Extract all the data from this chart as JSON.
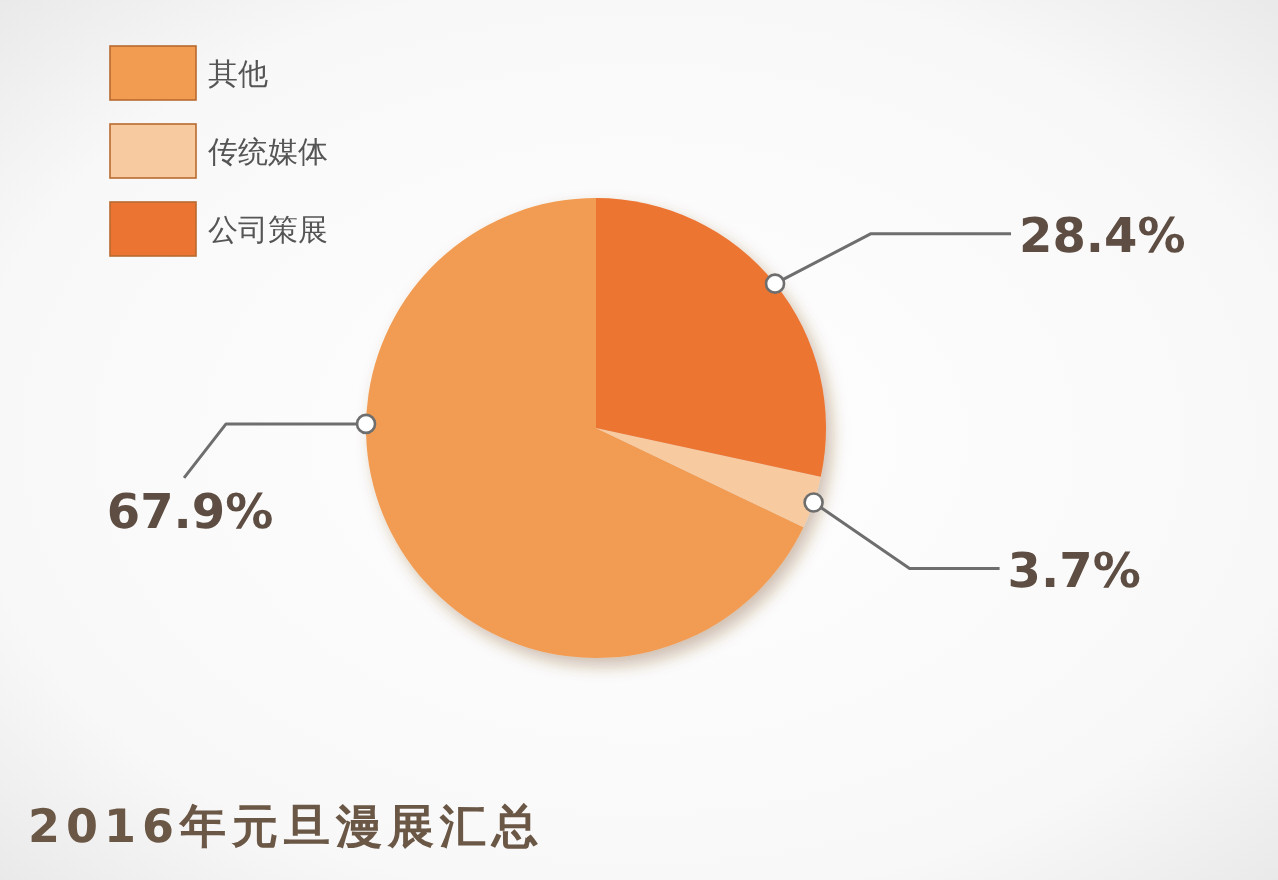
{
  "chart_data": {
    "type": "pie",
    "title": "2016年元旦漫展汇总",
    "categories": [
      "其他",
      "传统媒体",
      "公司策展"
    ],
    "values": [
      67.9,
      3.7,
      28.4
    ],
    "colors": [
      "#f29c52",
      "#f8caa0",
      "#ec7433"
    ],
    "value_labels": [
      "67.9%",
      "3.7%",
      "28.4%"
    ],
    "legend": "top left"
  }
}
